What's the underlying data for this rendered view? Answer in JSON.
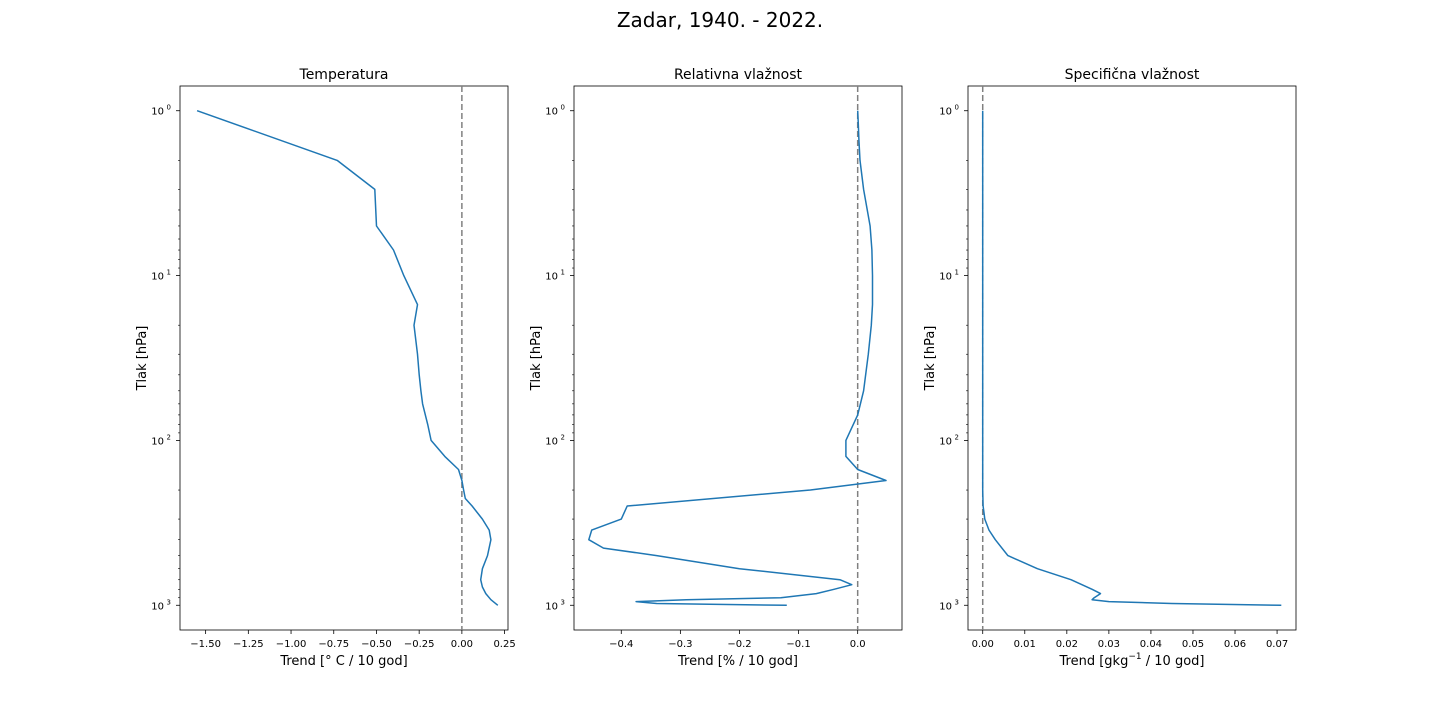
{
  "figure": {
    "suptitle": "Zadar, 1940. - 2022."
  },
  "chart_data": [
    {
      "type": "line",
      "title": "Temperatura",
      "xlabel": "Trend [° C / 10 god]",
      "ylabel": "Tlak [hPa]",
      "yscale": "log",
      "yinverted": true,
      "xlim": [
        -1.65,
        0.27
      ],
      "ylim": [
        1000,
        1
      ],
      "xticks": [
        -1.5,
        -1.25,
        -1.0,
        -0.75,
        -0.5,
        -0.25,
        0.0,
        0.25
      ],
      "xtick_labels": [
        "−1.50",
        "−1.25",
        "−1.00",
        "−0.75",
        "−0.50",
        "−0.25",
        "0.00",
        "0.25"
      ],
      "yticks": [
        1,
        10,
        100,
        1000
      ],
      "ytick_labels": [
        "10",
        "10",
        "10",
        "10"
      ],
      "ytick_exponents": [
        "0",
        "1",
        "2",
        "3"
      ],
      "zero_line": 0,
      "series_color": "#1f77b4",
      "series": [
        {
          "x": [
            0.21,
            0.17,
            0.14,
            0.12,
            0.11,
            0.12,
            0.15,
            0.17,
            0.16,
            0.12,
            0.06,
            0.02,
            0.01,
            0.0,
            -0.02,
            -0.1,
            -0.18,
            -0.2,
            -0.23,
            -0.24,
            -0.25,
            -0.26,
            -0.28,
            -0.26,
            -0.34,
            -0.4,
            -0.5,
            -0.51,
            -0.73,
            -1.55
          ],
          "y": [
            1000,
            925,
            850,
            775,
            700,
            600,
            500,
            400,
            350,
            300,
            250,
            225,
            200,
            175,
            150,
            125,
            100,
            80,
            60,
            50,
            40,
            30,
            20,
            15,
            10,
            7,
            5,
            3,
            2,
            1
          ]
        }
      ]
    },
    {
      "type": "line",
      "title": "Relativna vlažnost",
      "xlabel": "Trend [% / 10 god]",
      "ylabel": "Tlak [hPa]",
      "yscale": "log",
      "yinverted": true,
      "xlim": [
        -0.48,
        0.075
      ],
      "ylim": [
        1000,
        1
      ],
      "xticks": [
        -0.4,
        -0.3,
        -0.2,
        -0.1,
        0.0
      ],
      "xtick_labels": [
        "−0.4",
        "−0.3",
        "−0.2",
        "−0.1",
        "0.0"
      ],
      "yticks": [
        1,
        10,
        100,
        1000
      ],
      "ytick_labels": [
        "10",
        "10",
        "10",
        "10"
      ],
      "ytick_exponents": [
        "0",
        "1",
        "2",
        "3"
      ],
      "zero_line": 0,
      "series_color": "#1f77b4",
      "series": [
        {
          "x": [
            -0.12,
            -0.34,
            -0.375,
            -0.29,
            -0.13,
            -0.07,
            -0.04,
            -0.01,
            -0.03,
            -0.2,
            -0.34,
            -0.43,
            -0.455,
            -0.45,
            -0.4,
            -0.39,
            -0.08,
            0.048,
            0.0,
            -0.02,
            -0.02,
            0.0,
            0.01,
            0.018,
            0.023,
            0.025,
            0.025,
            0.024,
            0.021,
            0.01,
            0.004,
            0.002,
            0.001,
            0.0
          ],
          "y": [
            1000,
            975,
            950,
            925,
            900,
            850,
            800,
            750,
            700,
            600,
            500,
            450,
            400,
            350,
            300,
            250,
            200,
            175,
            150,
            125,
            100,
            70,
            50,
            30,
            20,
            15,
            10,
            7,
            5,
            3,
            2,
            1.5,
            1.2,
            1
          ]
        }
      ]
    },
    {
      "type": "line",
      "title": "Specifična vlažnost",
      "xlabel": "Trend [gkg",
      "xlabel_sup": "−1",
      "xlabel_tail": " / 10 god]",
      "ylabel": "Tlak [hPa]",
      "yscale": "log",
      "yinverted": true,
      "xlim": [
        -0.0035,
        0.0745
      ],
      "ylim": [
        1000,
        1
      ],
      "xticks": [
        0.0,
        0.01,
        0.02,
        0.03,
        0.04,
        0.05,
        0.06,
        0.07
      ],
      "xtick_labels": [
        "0.00",
        "0.01",
        "0.02",
        "0.03",
        "0.04",
        "0.05",
        "0.06",
        "0.07"
      ],
      "yticks": [
        1,
        10,
        100,
        1000
      ],
      "ytick_labels": [
        "10",
        "10",
        "10",
        "10"
      ],
      "ytick_exponents": [
        "0",
        "1",
        "2",
        "3"
      ],
      "zero_line": 0,
      "series_color": "#1f77b4",
      "series": [
        {
          "x": [
            0.071,
            0.045,
            0.03,
            0.026,
            0.0265,
            0.028,
            0.026,
            0.021,
            0.013,
            0.006,
            0.003,
            0.0015,
            0.0005,
            0.0001,
            0.0,
            0.0,
            0.0,
            0.0,
            0.0
          ],
          "y": [
            1000,
            975,
            950,
            925,
            900,
            850,
            800,
            700,
            600,
            500,
            400,
            350,
            300,
            250,
            200,
            100,
            10,
            2,
            1
          ]
        }
      ]
    }
  ]
}
